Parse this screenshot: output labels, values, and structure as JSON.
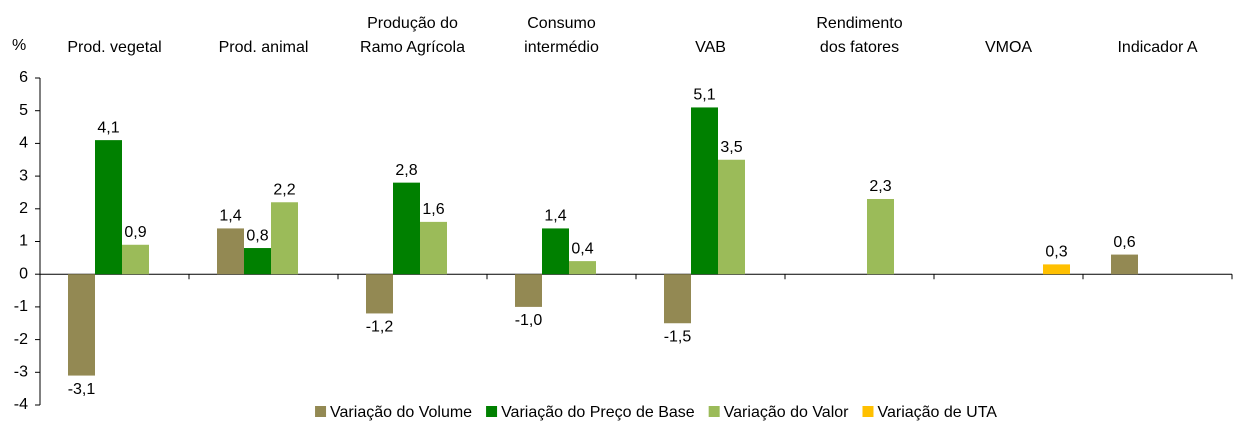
{
  "chart_data": {
    "type": "bar",
    "y_label": "%",
    "categories": [
      "Prod. vegetal",
      "Prod. animal",
      "Produção do\nRamo Agrícola",
      "Consumo\nintermédio",
      "VAB",
      "Rendimento\ndos fatores",
      "VMOA",
      "Indicador A"
    ],
    "series": [
      {
        "name": "Variação do Volume",
        "color": "#938953",
        "values": [
          -3.1,
          1.4,
          -1.2,
          -1.0,
          -1.5,
          null,
          null,
          0.6
        ],
        "value_labels": [
          "-3,1",
          "1,4",
          "-1,2",
          "-1,0",
          "-1,5",
          null,
          null,
          "0,6"
        ]
      },
      {
        "name": "Variação do Preço de Base",
        "color": "#008000",
        "values": [
          4.1,
          0.8,
          2.8,
          1.4,
          5.1,
          null,
          null,
          null
        ],
        "value_labels": [
          "4,1",
          "0,8",
          "2,8",
          "1,4",
          "5,1",
          null,
          null,
          null
        ]
      },
      {
        "name": "Variação do Valor",
        "color": "#9bbb59",
        "values": [
          0.9,
          2.2,
          1.6,
          0.4,
          3.5,
          2.3,
          null,
          null
        ],
        "value_labels": [
          "0,9",
          "2,2",
          "1,6",
          "0,4",
          "3,5",
          "2,3",
          null,
          null
        ]
      },
      {
        "name": "Variação de UTA",
        "color": "#ffc000",
        "values": [
          null,
          null,
          null,
          null,
          null,
          null,
          0.3,
          null
        ],
        "value_labels": [
          null,
          null,
          null,
          null,
          null,
          null,
          "0,3",
          null
        ]
      }
    ],
    "ylim": [
      -4,
      6
    ],
    "yticks": [
      -4,
      -3,
      -2,
      -1,
      0,
      1,
      2,
      3,
      4,
      5,
      6
    ],
    "legend": "bottom"
  }
}
